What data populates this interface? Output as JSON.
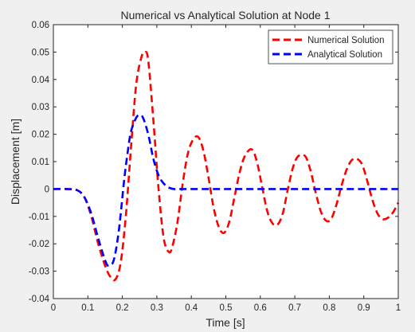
{
  "chart_data": {
    "type": "line",
    "title": "Numerical vs Analytical Solution at Node 1",
    "xlabel": "Time [s]",
    "ylabel": "Displacement [m]",
    "xlim": [
      0,
      1
    ],
    "ylim": [
      -0.04,
      0.06
    ],
    "x_ticks": [
      "0",
      "0.1",
      "0.2",
      "0.3",
      "0.4",
      "0.5",
      "0.6",
      "0.7",
      "0.8",
      "0.9",
      "1"
    ],
    "y_ticks": [
      "-0.04",
      "-0.03",
      "-0.02",
      "-0.01",
      "0",
      "0.01",
      "0.02",
      "0.03",
      "0.04",
      "0.05",
      "0.06"
    ],
    "grid": false,
    "legend_position": "top-right",
    "series": [
      {
        "name": "Numerical Solution",
        "color": "#ff0000",
        "line_style": "dashed",
        "x": [
          0,
          0.04,
          0.07,
          0.09,
          0.11,
          0.13,
          0.15,
          0.165,
          0.18,
          0.195,
          0.21,
          0.225,
          0.24,
          0.255,
          0.265,
          0.275,
          0.29,
          0.305,
          0.32,
          0.335,
          0.345,
          0.36,
          0.375,
          0.39,
          0.405,
          0.42,
          0.435,
          0.45,
          0.465,
          0.48,
          0.495,
          0.51,
          0.525,
          0.54,
          0.555,
          0.575,
          0.59,
          0.605,
          0.62,
          0.635,
          0.65,
          0.665,
          0.68,
          0.695,
          0.71,
          0.73,
          0.745,
          0.76,
          0.775,
          0.79,
          0.805,
          0.82,
          0.835,
          0.85,
          0.865,
          0.88,
          0.895,
          0.91,
          0.925,
          0.94,
          0.955,
          0.97,
          0.985,
          1.0
        ],
        "y": [
          0,
          0,
          -0.0005,
          -0.003,
          -0.01,
          -0.02,
          -0.028,
          -0.032,
          -0.033,
          -0.027,
          -0.01,
          0.015,
          0.038,
          0.048,
          0.05,
          0.047,
          0.025,
          0.0,
          -0.018,
          -0.023,
          -0.021,
          -0.012,
          0.002,
          0.013,
          0.018,
          0.019,
          0.014,
          0.004,
          -0.007,
          -0.014,
          -0.016,
          -0.012,
          -0.003,
          0.006,
          0.012,
          0.0145,
          0.01,
          0.001,
          -0.008,
          -0.0125,
          -0.013,
          -0.009,
          0.0,
          0.008,
          0.012,
          0.012,
          0.007,
          -0.001,
          -0.008,
          -0.0115,
          -0.011,
          -0.006,
          0.001,
          0.007,
          0.0105,
          0.011,
          0.009,
          0.003,
          -0.004,
          -0.009,
          -0.011,
          -0.0105,
          -0.0085,
          -0.005
        ]
      },
      {
        "name": "Analytical Solution",
        "color": "#0000ff",
        "line_style": "dashed",
        "x": [
          0,
          0.04,
          0.07,
          0.09,
          0.11,
          0.13,
          0.15,
          0.16,
          0.175,
          0.19,
          0.205,
          0.215,
          0.225,
          0.24,
          0.25,
          0.26,
          0.275,
          0.29,
          0.305,
          0.32,
          0.335,
          0.35,
          0.38,
          0.5,
          0.7,
          1.0
        ],
        "y": [
          0,
          0,
          -0.0005,
          -0.003,
          -0.009,
          -0.018,
          -0.026,
          -0.028,
          -0.026,
          -0.015,
          0.003,
          0.013,
          0.021,
          0.026,
          0.027,
          0.026,
          0.02,
          0.011,
          0.005,
          0.002,
          0.0005,
          0,
          0,
          0,
          0,
          0
        ]
      }
    ]
  }
}
